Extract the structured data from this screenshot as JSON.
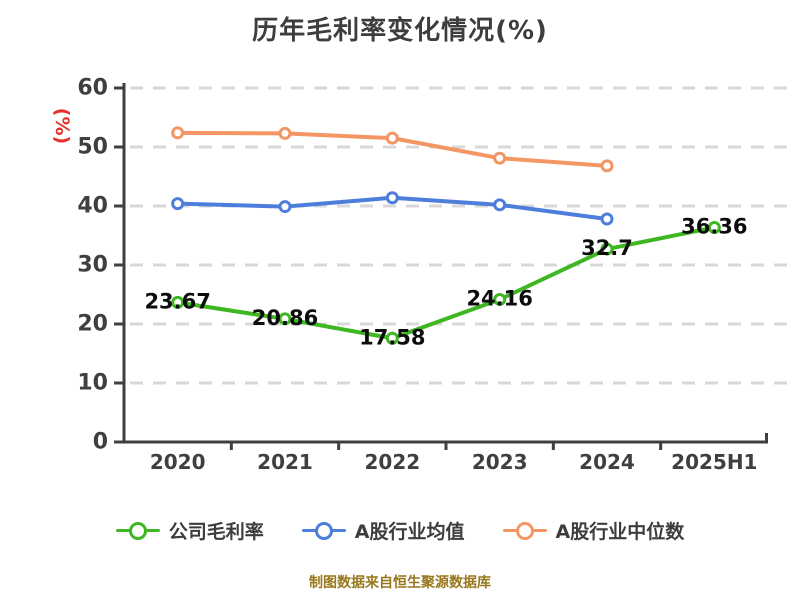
{
  "chart_data": {
    "type": "line",
    "title": "历年毛利率变化情况(%)",
    "ylabel": "(%)",
    "categories": [
      "2020",
      "2021",
      "2022",
      "2023",
      "2024",
      "2025H1"
    ],
    "ylim": [
      0,
      60
    ],
    "ytick_step": 10,
    "yticks": [
      "0",
      "10",
      "20",
      "30",
      "40",
      "50",
      "60"
    ],
    "grid": "horizontal-dashed",
    "legend_position": "bottom",
    "series": [
      {
        "name": "公司毛利率",
        "color": "#3eb722",
        "values": [
          23.67,
          20.86,
          17.58,
          24.16,
          32.7,
          36.36
        ],
        "data_labels": [
          "23.67",
          "20.86",
          "17.58",
          "24.16",
          "32.7",
          "36.36"
        ]
      },
      {
        "name": "A股行业均值",
        "color": "#4d7edc",
        "values": [
          40.4,
          39.9,
          41.4,
          40.2,
          37.8
        ]
      },
      {
        "name": "A股行业中位数",
        "color": "#f39664",
        "values": [
          52.4,
          52.3,
          51.5,
          48.1,
          46.8
        ]
      }
    ]
  },
  "footer": {
    "text": "制图数据来自恒生聚源数据库"
  },
  "colors": {
    "axis": "#3f3f3f",
    "grid": "#d8d8d8",
    "title": "#3d3d3d",
    "ylabel": "#e8302a",
    "data_label": "#0c0c0c",
    "marker_fill": "#ffffff",
    "footer": "#97781e"
  }
}
